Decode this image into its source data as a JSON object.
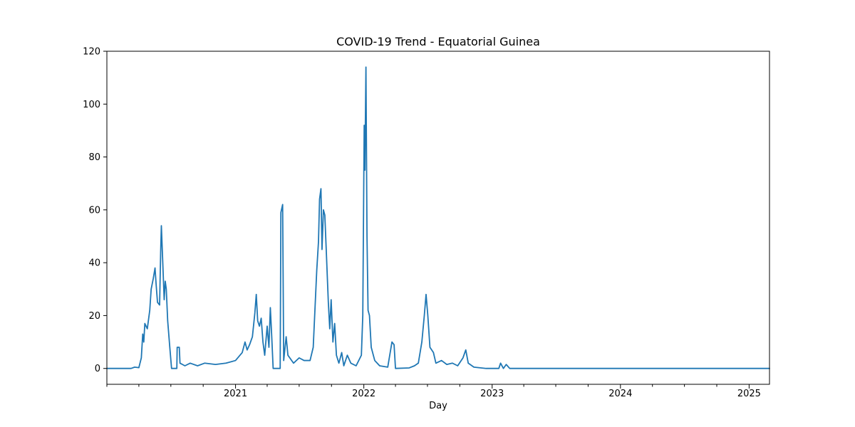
{
  "chart_data": {
    "type": "line",
    "title": "COVID-19 Trend - Equatorial Guinea",
    "xlabel": "Day",
    "ylabel": "",
    "xlim": [
      "2020-01-01",
      "2025-02-28"
    ],
    "ylim": [
      -6,
      120
    ],
    "grid": false,
    "legend": "none",
    "line_color": "#1f77b4",
    "x_ticks": [
      {
        "date": "2021-01-01",
        "label": "2021"
      },
      {
        "date": "2022-01-01",
        "label": "2022"
      },
      {
        "date": "2023-01-01",
        "label": "2023"
      },
      {
        "date": "2024-01-01",
        "label": "2024"
      },
      {
        "date": "2025-01-01",
        "label": "2025"
      }
    ],
    "y_ticks": [
      0,
      20,
      40,
      60,
      80,
      100,
      120
    ],
    "series": [
      {
        "points": [
          [
            "2020-01-01",
            0
          ],
          [
            "2020-03-10",
            0
          ],
          [
            "2020-03-20",
            0.5
          ],
          [
            "2020-04-01",
            0.3
          ],
          [
            "2020-04-08",
            4
          ],
          [
            "2020-04-12",
            13
          ],
          [
            "2020-04-15",
            10
          ],
          [
            "2020-04-18",
            17
          ],
          [
            "2020-04-25",
            15
          ],
          [
            "2020-05-02",
            22
          ],
          [
            "2020-05-06",
            30
          ],
          [
            "2020-05-12",
            34
          ],
          [
            "2020-05-17",
            38
          ],
          [
            "2020-05-20",
            32
          ],
          [
            "2020-05-24",
            25
          ],
          [
            "2020-05-30",
            24
          ],
          [
            "2020-06-02",
            44
          ],
          [
            "2020-06-04",
            54
          ],
          [
            "2020-06-08",
            40
          ],
          [
            "2020-06-12",
            26
          ],
          [
            "2020-06-15",
            33
          ],
          [
            "2020-06-18",
            30
          ],
          [
            "2020-06-22",
            18
          ],
          [
            "2020-06-28",
            8
          ],
          [
            "2020-07-03",
            0
          ],
          [
            "2020-07-18",
            0
          ],
          [
            "2020-07-19",
            8
          ],
          [
            "2020-07-25",
            8
          ],
          [
            "2020-07-27",
            2
          ],
          [
            "2020-08-10",
            1
          ],
          [
            "2020-08-25",
            2
          ],
          [
            "2020-09-15",
            1
          ],
          [
            "2020-10-05",
            2
          ],
          [
            "2020-11-05",
            1.5
          ],
          [
            "2020-12-05",
            2
          ],
          [
            "2021-01-01",
            3
          ],
          [
            "2021-01-20",
            6
          ],
          [
            "2021-01-28",
            10
          ],
          [
            "2021-02-03",
            7
          ],
          [
            "2021-02-10",
            9
          ],
          [
            "2021-02-18",
            12
          ],
          [
            "2021-02-25",
            21
          ],
          [
            "2021-03-01",
            28
          ],
          [
            "2021-03-05",
            18
          ],
          [
            "2021-03-10",
            16
          ],
          [
            "2021-03-15",
            19
          ],
          [
            "2021-03-20",
            10
          ],
          [
            "2021-03-25",
            5
          ],
          [
            "2021-04-01",
            16
          ],
          [
            "2021-04-06",
            8
          ],
          [
            "2021-04-10",
            23
          ],
          [
            "2021-04-14",
            12
          ],
          [
            "2021-04-18",
            0
          ],
          [
            "2021-05-08",
            0
          ],
          [
            "2021-05-10",
            59
          ],
          [
            "2021-05-15",
            62
          ],
          [
            "2021-05-18",
            3
          ],
          [
            "2021-05-25",
            12
          ],
          [
            "2021-05-30",
            5
          ],
          [
            "2021-06-15",
            2
          ],
          [
            "2021-07-01",
            4
          ],
          [
            "2021-07-15",
            3
          ],
          [
            "2021-08-01",
            3
          ],
          [
            "2021-08-10",
            8
          ],
          [
            "2021-08-20",
            37
          ],
          [
            "2021-08-25",
            48
          ],
          [
            "2021-08-28",
            64
          ],
          [
            "2021-09-01",
            68
          ],
          [
            "2021-09-04",
            45
          ],
          [
            "2021-09-08",
            60
          ],
          [
            "2021-09-12",
            58
          ],
          [
            "2021-09-16",
            45
          ],
          [
            "2021-09-22",
            25
          ],
          [
            "2021-09-26",
            15
          ],
          [
            "2021-09-30",
            26
          ],
          [
            "2021-10-05",
            10
          ],
          [
            "2021-10-10",
            17
          ],
          [
            "2021-10-15",
            5
          ],
          [
            "2021-10-22",
            2
          ],
          [
            "2021-10-30",
            6
          ],
          [
            "2021-11-05",
            1
          ],
          [
            "2021-11-15",
            5
          ],
          [
            "2021-11-25",
            2
          ],
          [
            "2021-12-10",
            1
          ],
          [
            "2021-12-25",
            5
          ],
          [
            "2021-12-29",
            20
          ],
          [
            "2022-01-02",
            92
          ],
          [
            "2022-01-04",
            75
          ],
          [
            "2022-01-07",
            114
          ],
          [
            "2022-01-10",
            50
          ],
          [
            "2022-01-13",
            22
          ],
          [
            "2022-01-17",
            20
          ],
          [
            "2022-01-22",
            8
          ],
          [
            "2022-02-01",
            3
          ],
          [
            "2022-02-15",
            1
          ],
          [
            "2022-03-10",
            0.5
          ],
          [
            "2022-03-22",
            10
          ],
          [
            "2022-03-28",
            9
          ],
          [
            "2022-04-01",
            0
          ],
          [
            "2022-05-10",
            0.2
          ],
          [
            "2022-05-25",
            1
          ],
          [
            "2022-06-05",
            2
          ],
          [
            "2022-06-15",
            10
          ],
          [
            "2022-06-22",
            20
          ],
          [
            "2022-06-27",
            28
          ],
          [
            "2022-07-02",
            20
          ],
          [
            "2022-07-08",
            8
          ],
          [
            "2022-07-18",
            6
          ],
          [
            "2022-07-25",
            2
          ],
          [
            "2022-08-10",
            3
          ],
          [
            "2022-08-25",
            1.5
          ],
          [
            "2022-09-10",
            2
          ],
          [
            "2022-09-25",
            1
          ],
          [
            "2022-10-10",
            4
          ],
          [
            "2022-10-18",
            7
          ],
          [
            "2022-10-25",
            2
          ],
          [
            "2022-11-10",
            0.5
          ],
          [
            "2022-12-15",
            0
          ],
          [
            "2023-01-20",
            0
          ],
          [
            "2023-01-25",
            2
          ],
          [
            "2023-02-02",
            0
          ],
          [
            "2023-02-10",
            1.5
          ],
          [
            "2023-02-20",
            0
          ],
          [
            "2025-02-28",
            0
          ]
        ]
      }
    ]
  }
}
